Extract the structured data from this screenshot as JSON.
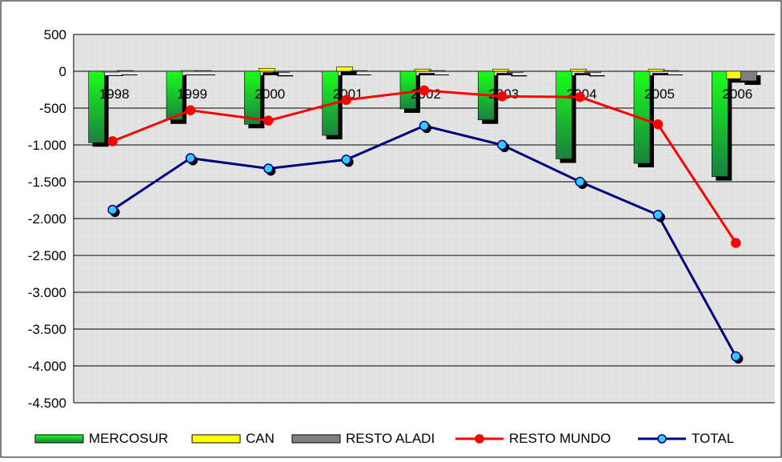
{
  "chart_data": {
    "type": "bar",
    "categories": [
      "1998",
      "1999",
      "2000",
      "2001",
      "2002",
      "2003",
      "2004",
      "2005",
      "2006"
    ],
    "ylim": [
      -4500,
      500
    ],
    "y_ticks": [
      500,
      0,
      -500,
      -1000,
      -1500,
      -2000,
      -2500,
      -3000,
      -3500,
      -4000,
      -4500
    ],
    "y_tick_labels": [
      "500",
      "0",
      "-500",
      "-1.000",
      "-1.500",
      "-2.000",
      "-2.500",
      "-3.000",
      "-3.500",
      "-4.000",
      "-4.500"
    ],
    "grid": true,
    "legend_position": "bottom",
    "series": [
      {
        "name": "MERCOSUR",
        "type": "bar",
        "color": "#1fbf3a",
        "values": [
          -970,
          -660,
          -720,
          -870,
          -510,
          -660,
          -1190,
          -1250,
          -1430
        ]
      },
      {
        "name": "CAN",
        "type": "bar",
        "color": "#ffff00",
        "values": [
          -10,
          10,
          40,
          60,
          30,
          30,
          30,
          30,
          -100
        ]
      },
      {
        "name": "RESTO ALADI",
        "type": "bar",
        "color": "#808080",
        "values": [
          10,
          10,
          -15,
          10,
          10,
          -15,
          -15,
          10,
          -130
        ]
      },
      {
        "name": "RESTO MUNDO",
        "type": "line",
        "color": "#ff0000",
        "values": [
          -950,
          -530,
          -670,
          -390,
          -260,
          -340,
          -350,
          -720,
          -2330
        ]
      },
      {
        "name": "TOTAL",
        "type": "line",
        "color": "#00007f",
        "marker_color": "#33ccff",
        "values": [
          -1880,
          -1180,
          -1320,
          -1200,
          -740,
          -1000,
          -1500,
          -1950,
          -3870
        ]
      }
    ]
  }
}
